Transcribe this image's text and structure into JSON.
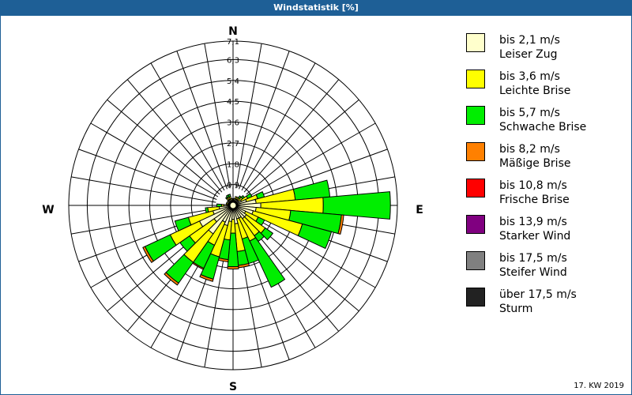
{
  "title": "Windstatistik [%]",
  "footer": "17. KW 2019",
  "chart_data": {
    "type": "wind-rose",
    "title": "Windstatistik [%]",
    "unit": "%",
    "compass": {
      "n": "N",
      "e": "E",
      "s": "S",
      "w": "W"
    },
    "ring_labels": [
      "0,9",
      "1,8",
      "2,7",
      "3,6",
      "4,5",
      "5,4",
      "6,3",
      "7,1"
    ],
    "ring_values": [
      0.9,
      1.8,
      2.7,
      3.6,
      4.5,
      5.4,
      6.3,
      7.1
    ],
    "rmax": 7.1,
    "classes": [
      {
        "range": "bis 2,1 m/s",
        "name": "Leiser Zug",
        "color": "#ffffcc"
      },
      {
        "range": "bis 3,6 m/s",
        "name": "Leichte Brise",
        "color": "#ffff00"
      },
      {
        "range": "bis 5,7 m/s",
        "name": "Schwache Brise",
        "color": "#00ee00"
      },
      {
        "range": "bis 8,2 m/s",
        "name": "Mäßige Brise",
        "color": "#ff8000"
      },
      {
        "range": "bis 10,8 m/s",
        "name": "Frische Brise",
        "color": "#ff0000"
      },
      {
        "range": "bis 13,9 m/s",
        "name": "Starker Wind",
        "color": "#800080"
      },
      {
        "range": "bis 17,5 m/s",
        "name": "Steifer Wind",
        "color": "#808080"
      },
      {
        "range": "über 17,5 m/s",
        "name": "Sturm",
        "color": "#222222"
      }
    ],
    "directions_deg": [
      0,
      10,
      20,
      30,
      40,
      50,
      60,
      70,
      80,
      90,
      100,
      110,
      120,
      130,
      140,
      150,
      160,
      170,
      180,
      190,
      200,
      210,
      220,
      230,
      240,
      250,
      260,
      270,
      280,
      290,
      300,
      310,
      320,
      330,
      340,
      350
    ],
    "values": [
      [
        0.2,
        0,
        0,
        0
      ],
      [
        0.2,
        0.1,
        0,
        0
      ],
      [
        0.3,
        0.1,
        0,
        0
      ],
      [
        0.3,
        0.1,
        0,
        0
      ],
      [
        0.3,
        0.1,
        0.1,
        0
      ],
      [
        0.3,
        0.2,
        0.1,
        0
      ],
      [
        0.4,
        0.3,
        0.2,
        0
      ],
      [
        0.6,
        0.5,
        0.3,
        0
      ],
      [
        1.0,
        1.7,
        1.5,
        0
      ],
      [
        1.2,
        2.7,
        2.9,
        0
      ],
      [
        1.0,
        1.5,
        2.2,
        0.1
      ],
      [
        0.9,
        2.2,
        1.3,
        0
      ],
      [
        0.6,
        0.6,
        0.3,
        0
      ],
      [
        0.7,
        1.0,
        0.4,
        0
      ],
      [
        0.7,
        0.9,
        0.3,
        0
      ],
      [
        0.6,
        1.1,
        2.2,
        0
      ],
      [
        0.6,
        0.9,
        1.1,
        0
      ],
      [
        0.8,
        1.2,
        0.6,
        0.1
      ],
      [
        0.6,
        0.6,
        1.45,
        0.1
      ],
      [
        0.7,
        0.8,
        0.85,
        0.1
      ],
      [
        0.9,
        1.4,
        1.0,
        0.1
      ],
      [
        0.8,
        1.1,
        1.1,
        0.05
      ],
      [
        1.5,
        1.5,
        1.1,
        0.1
      ],
      [
        1.0,
        1.3,
        0.5,
        0
      ],
      [
        1.6,
        1.4,
        1.2,
        0.1
      ],
      [
        0.9,
        1.1,
        0.6,
        0
      ],
      [
        0.6,
        0.5,
        0.1,
        0
      ],
      [
        0.4,
        0.1,
        0.2,
        0
      ],
      [
        0.2,
        0.1,
        0,
        0
      ],
      [
        0.2,
        0.1,
        0,
        0
      ],
      [
        0.2,
        0,
        0,
        0
      ],
      [
        0.2,
        0.1,
        0,
        0
      ],
      [
        0.3,
        0.1,
        0.05,
        0
      ],
      [
        0.3,
        0.1,
        0.1,
        0
      ],
      [
        0.3,
        0.1,
        0.1,
        0
      ],
      [
        0.2,
        0.1,
        0,
        0
      ]
    ]
  }
}
